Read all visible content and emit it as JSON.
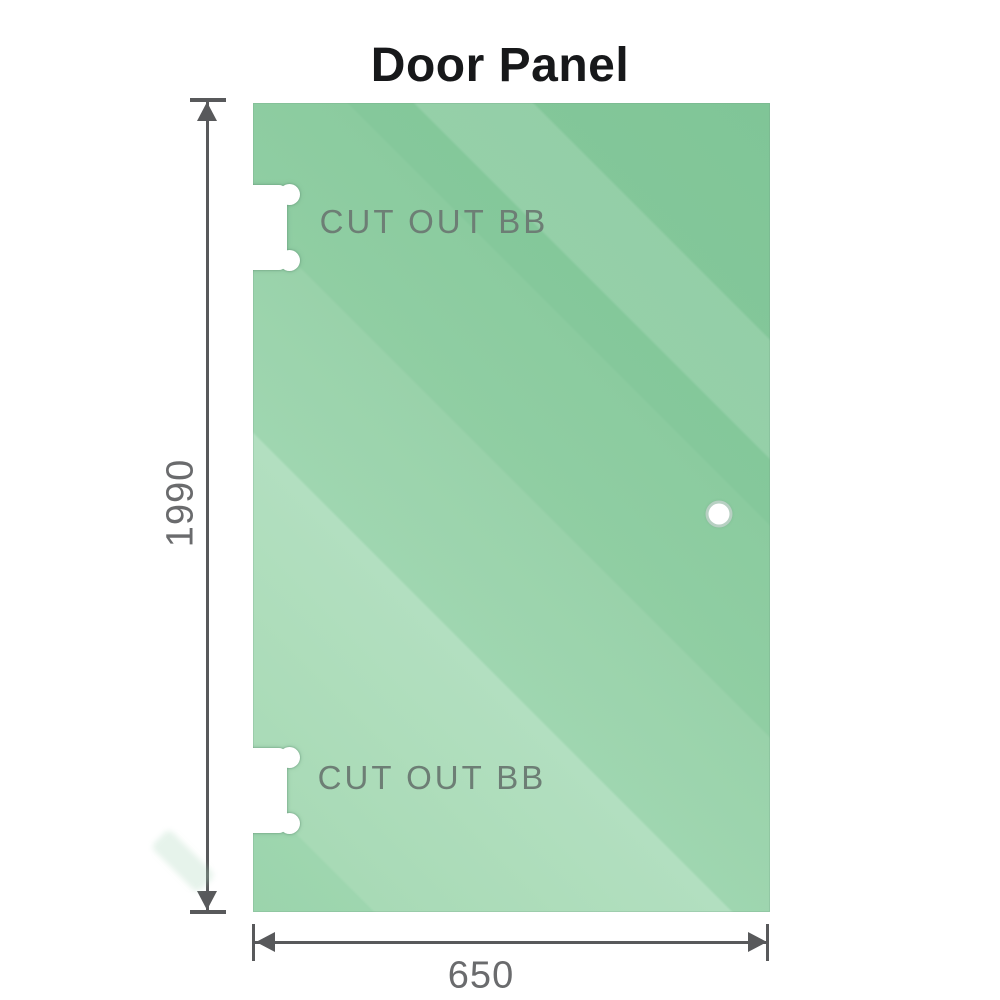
{
  "title": "Door Panel",
  "dimensions": {
    "height": "1990",
    "width": "650"
  },
  "cutouts": {
    "top_label": "CUT OUT BB",
    "bottom_label": "CUT OUT BB"
  },
  "colors": {
    "glass_light": "#b2dfc0",
    "glass_dark": "#80c597",
    "dimension_lines": "#58595b",
    "dimension_text": "#6a6b6d",
    "cutout_label_text": "#6d7e75",
    "background": "#ffffff"
  }
}
